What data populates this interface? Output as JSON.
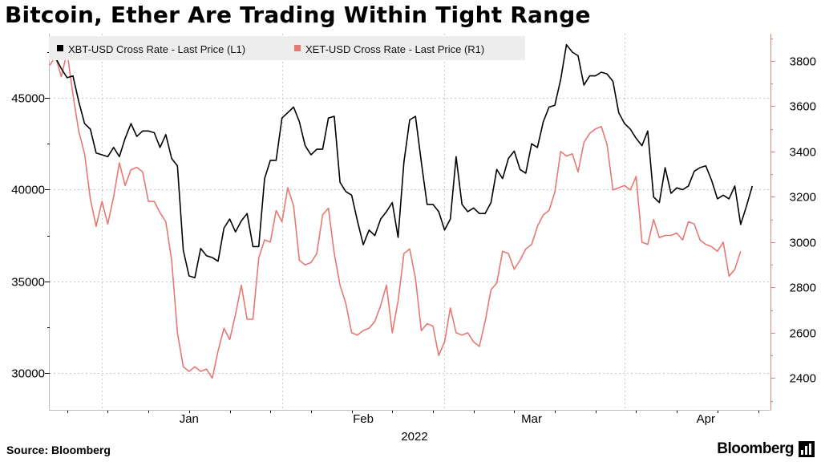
{
  "header": {
    "title": "Bitcoin, Ether Are Trading Within Tight Range"
  },
  "footer": {
    "source": "Source:  Bloomberg",
    "brand": "Bloomberg"
  },
  "colors": {
    "btc": "#000000",
    "eth": "#e87872",
    "right_axis": "#e8837c",
    "grid": "#c8c8c8"
  },
  "chart_data": {
    "type": "line",
    "title": "Bitcoin, Ether Are Trading Within Tight Range",
    "xlabel": "2022",
    "x_tick_labels": [
      "Jan",
      "Feb",
      "Mar",
      "Apr"
    ],
    "legend_placement": "top-left",
    "grid": true,
    "y_left": {
      "ylim": [
        28000,
        48500
      ],
      "ticks": [
        30000,
        35000,
        40000,
        45000
      ]
    },
    "y_right": {
      "ylim": [
        2260,
        3920
      ],
      "ticks": [
        2400,
        2600,
        2800,
        3000,
        3200,
        3400,
        3600,
        3800
      ]
    },
    "x_range": [
      "2021-12-23",
      "2022-04-26"
    ],
    "series": [
      {
        "name": "XBT-USD Cross Rate - Last Price (L1)",
        "axis": "left",
        "points": [
          [
            "2021-12-23",
            47400
          ],
          [
            "2021-12-24",
            47200
          ],
          [
            "2021-12-25",
            46600
          ],
          [
            "2021-12-26",
            46100
          ],
          [
            "2021-12-27",
            46200
          ],
          [
            "2021-12-28",
            44800
          ],
          [
            "2021-12-29",
            43600
          ],
          [
            "2021-12-30",
            43300
          ],
          [
            "2021-12-31",
            42000
          ],
          [
            "2022-01-01",
            41900
          ],
          [
            "2022-01-02",
            41800
          ],
          [
            "2022-01-03",
            42300
          ],
          [
            "2022-01-04",
            41800
          ],
          [
            "2022-01-05",
            42800
          ],
          [
            "2022-01-06",
            43600
          ],
          [
            "2022-01-07",
            42900
          ],
          [
            "2022-01-08",
            43200
          ],
          [
            "2022-01-09",
            43200
          ],
          [
            "2022-01-10",
            43100
          ],
          [
            "2022-01-11",
            42300
          ],
          [
            "2022-01-12",
            43000
          ],
          [
            "2022-01-13",
            41700
          ],
          [
            "2022-01-14",
            41300
          ],
          [
            "2022-01-15",
            36700
          ],
          [
            "2022-01-16",
            35300
          ],
          [
            "2022-01-17",
            35200
          ],
          [
            "2022-01-18",
            36800
          ],
          [
            "2022-01-19",
            36400
          ],
          [
            "2022-01-20",
            36300
          ],
          [
            "2022-01-21",
            36100
          ],
          [
            "2022-01-22",
            37900
          ],
          [
            "2022-01-23",
            38400
          ],
          [
            "2022-01-24",
            37700
          ],
          [
            "2022-01-25",
            38300
          ],
          [
            "2022-01-26",
            38700
          ],
          [
            "2022-01-27",
            36900
          ],
          [
            "2022-01-28",
            36900
          ],
          [
            "2022-01-29",
            40600
          ],
          [
            "2022-01-30",
            41600
          ],
          [
            "2022-01-31",
            41600
          ],
          [
            "2022-02-01",
            43900
          ],
          [
            "2022-02-02",
            44200
          ],
          [
            "2022-02-03",
            44500
          ],
          [
            "2022-02-04",
            43700
          ],
          [
            "2022-02-05",
            42400
          ],
          [
            "2022-02-06",
            41900
          ],
          [
            "2022-02-07",
            42200
          ],
          [
            "2022-02-08",
            42200
          ],
          [
            "2022-02-09",
            43900
          ],
          [
            "2022-02-10",
            44000
          ],
          [
            "2022-02-11",
            40400
          ],
          [
            "2022-02-12",
            39900
          ],
          [
            "2022-02-13",
            39700
          ],
          [
            "2022-02-14",
            38300
          ],
          [
            "2022-02-15",
            37000
          ],
          [
            "2022-02-16",
            37800
          ],
          [
            "2022-02-17",
            37500
          ],
          [
            "2022-02-18",
            38400
          ],
          [
            "2022-02-19",
            38800
          ],
          [
            "2022-02-20",
            39300
          ],
          [
            "2022-02-21",
            37400
          ],
          [
            "2022-02-22",
            41500
          ],
          [
            "2022-02-23",
            43800
          ],
          [
            "2022-02-24",
            44000
          ],
          [
            "2022-02-25",
            41500
          ],
          [
            "2022-02-26",
            39200
          ],
          [
            "2022-02-27",
            39200
          ],
          [
            "2022-02-28",
            38800
          ],
          [
            "2022-03-01",
            37800
          ],
          [
            "2022-03-02",
            38400
          ],
          [
            "2022-03-03",
            41800
          ],
          [
            "2022-03-04",
            39200
          ],
          [
            "2022-03-05",
            38800
          ],
          [
            "2022-03-06",
            39000
          ],
          [
            "2022-03-07",
            38700
          ],
          [
            "2022-03-08",
            38700
          ],
          [
            "2022-03-09",
            39300
          ],
          [
            "2022-03-10",
            41100
          ],
          [
            "2022-03-11",
            40600
          ],
          [
            "2022-03-12",
            41700
          ],
          [
            "2022-03-13",
            42100
          ],
          [
            "2022-03-14",
            41100
          ],
          [
            "2022-03-15",
            40900
          ],
          [
            "2022-03-16",
            42500
          ],
          [
            "2022-03-17",
            42300
          ],
          [
            "2022-03-18",
            43700
          ],
          [
            "2022-03-19",
            44500
          ],
          [
            "2022-03-20",
            44600
          ],
          [
            "2022-03-21",
            46000
          ],
          [
            "2022-03-22",
            47900
          ],
          [
            "2022-03-23",
            47500
          ],
          [
            "2022-03-24",
            47300
          ],
          [
            "2022-03-25",
            45700
          ],
          [
            "2022-03-26",
            46200
          ],
          [
            "2022-03-27",
            46200
          ],
          [
            "2022-03-28",
            46400
          ],
          [
            "2022-03-29",
            46300
          ],
          [
            "2022-03-30",
            45900
          ],
          [
            "2022-03-31",
            44200
          ],
          [
            "2022-04-01",
            43600
          ],
          [
            "2022-04-02",
            43300
          ],
          [
            "2022-04-03",
            42800
          ],
          [
            "2022-04-04",
            42400
          ],
          [
            "2022-04-05",
            43200
          ],
          [
            "2022-04-06",
            39600
          ],
          [
            "2022-04-07",
            39300
          ],
          [
            "2022-04-08",
            41200
          ],
          [
            "2022-04-09",
            39800
          ],
          [
            "2022-04-10",
            40100
          ],
          [
            "2022-04-11",
            40000
          ],
          [
            "2022-04-12",
            40200
          ],
          [
            "2022-04-13",
            41000
          ],
          [
            "2022-04-14",
            41200
          ],
          [
            "2022-04-15",
            41300
          ],
          [
            "2022-04-16",
            40500
          ],
          [
            "2022-04-17",
            39500
          ],
          [
            "2022-04-18",
            39700
          ],
          [
            "2022-04-19",
            39500
          ],
          [
            "2022-04-20",
            40200
          ],
          [
            "2022-04-21",
            38100
          ],
          [
            "2022-04-22",
            39100
          ],
          [
            "2022-04-23",
            40200
          ]
        ]
      },
      {
        "name": "XET-USD Cross Rate - Last Price (R1)",
        "axis": "right",
        "points": [
          [
            "2021-12-23",
            3780
          ],
          [
            "2021-12-24",
            3820
          ],
          [
            "2021-12-25",
            3730
          ],
          [
            "2021-12-26",
            3840
          ],
          [
            "2021-12-27",
            3650
          ],
          [
            "2021-12-28",
            3490
          ],
          [
            "2021-12-29",
            3390
          ],
          [
            "2021-12-30",
            3190
          ],
          [
            "2021-12-31",
            3070
          ],
          [
            "2022-01-01",
            3180
          ],
          [
            "2022-01-02",
            3080
          ],
          [
            "2022-01-03",
            3200
          ],
          [
            "2022-01-04",
            3350
          ],
          [
            "2022-01-05",
            3250
          ],
          [
            "2022-01-06",
            3320
          ],
          [
            "2022-01-07",
            3330
          ],
          [
            "2022-01-08",
            3310
          ],
          [
            "2022-01-09",
            3180
          ],
          [
            "2022-01-10",
            3180
          ],
          [
            "2022-01-11",
            3130
          ],
          [
            "2022-01-12",
            3090
          ],
          [
            "2022-01-13",
            2920
          ],
          [
            "2022-01-14",
            2600
          ],
          [
            "2022-01-15",
            2450
          ],
          [
            "2022-01-16",
            2430
          ],
          [
            "2022-01-17",
            2450
          ],
          [
            "2022-01-18",
            2430
          ],
          [
            "2022-01-19",
            2440
          ],
          [
            "2022-01-20",
            2400
          ],
          [
            "2022-01-21",
            2520
          ],
          [
            "2022-01-22",
            2620
          ],
          [
            "2022-01-23",
            2570
          ],
          [
            "2022-01-24",
            2680
          ],
          [
            "2022-01-25",
            2810
          ],
          [
            "2022-01-26",
            2660
          ],
          [
            "2022-01-27",
            2660
          ],
          [
            "2022-01-28",
            2930
          ],
          [
            "2022-01-29",
            3010
          ],
          [
            "2022-01-30",
            3000
          ],
          [
            "2022-01-31",
            3140
          ],
          [
            "2022-02-01",
            3090
          ],
          [
            "2022-02-02",
            3240
          ],
          [
            "2022-02-03",
            3160
          ],
          [
            "2022-02-04",
            2920
          ],
          [
            "2022-02-05",
            2900
          ],
          [
            "2022-02-06",
            2910
          ],
          [
            "2022-02-07",
            2950
          ],
          [
            "2022-02-08",
            3120
          ],
          [
            "2022-02-09",
            3150
          ],
          [
            "2022-02-10",
            2950
          ],
          [
            "2022-02-11",
            2810
          ],
          [
            "2022-02-12",
            2730
          ],
          [
            "2022-02-13",
            2600
          ],
          [
            "2022-02-14",
            2590
          ],
          [
            "2022-02-15",
            2610
          ],
          [
            "2022-02-16",
            2620
          ],
          [
            "2022-02-17",
            2650
          ],
          [
            "2022-02-18",
            2720
          ],
          [
            "2022-02-19",
            2810
          ],
          [
            "2022-02-20",
            2600
          ],
          [
            "2022-02-21",
            2740
          ],
          [
            "2022-02-22",
            2950
          ],
          [
            "2022-02-23",
            2970
          ],
          [
            "2022-02-24",
            2840
          ],
          [
            "2022-02-25",
            2610
          ],
          [
            "2022-02-26",
            2640
          ],
          [
            "2022-02-27",
            2630
          ],
          [
            "2022-02-28",
            2500
          ],
          [
            "2022-03-01",
            2560
          ],
          [
            "2022-03-02",
            2710
          ],
          [
            "2022-03-03",
            2600
          ],
          [
            "2022-03-04",
            2590
          ],
          [
            "2022-03-05",
            2600
          ],
          [
            "2022-03-06",
            2560
          ],
          [
            "2022-03-07",
            2540
          ],
          [
            "2022-03-08",
            2650
          ],
          [
            "2022-03-09",
            2790
          ],
          [
            "2022-03-10",
            2820
          ],
          [
            "2022-03-11",
            2960
          ],
          [
            "2022-03-12",
            2950
          ],
          [
            "2022-03-13",
            2880
          ],
          [
            "2022-03-14",
            2920
          ],
          [
            "2022-03-15",
            2970
          ],
          [
            "2022-03-16",
            2990
          ],
          [
            "2022-03-17",
            3070
          ],
          [
            "2022-03-18",
            3120
          ],
          [
            "2022-03-19",
            3140
          ],
          [
            "2022-03-20",
            3220
          ],
          [
            "2022-03-21",
            3400
          ],
          [
            "2022-03-22",
            3380
          ],
          [
            "2022-03-23",
            3390
          ],
          [
            "2022-03-24",
            3310
          ],
          [
            "2022-03-25",
            3440
          ],
          [
            "2022-03-26",
            3480
          ],
          [
            "2022-03-27",
            3500
          ],
          [
            "2022-03-28",
            3510
          ],
          [
            "2022-03-29",
            3430
          ],
          [
            "2022-03-30",
            3230
          ],
          [
            "2022-03-31",
            3240
          ],
          [
            "2022-04-01",
            3250
          ],
          [
            "2022-04-02",
            3230
          ],
          [
            "2022-04-03",
            3290
          ],
          [
            "2022-04-04",
            3000
          ],
          [
            "2022-04-05",
            2990
          ],
          [
            "2022-04-06",
            3100
          ],
          [
            "2022-04-07",
            3020
          ],
          [
            "2022-04-08",
            3030
          ],
          [
            "2022-04-09",
            3030
          ],
          [
            "2022-04-10",
            3040
          ],
          [
            "2022-04-11",
            3010
          ],
          [
            "2022-04-12",
            3090
          ],
          [
            "2022-04-13",
            3080
          ],
          [
            "2022-04-14",
            3010
          ],
          [
            "2022-04-15",
            2990
          ],
          [
            "2022-04-16",
            2980
          ],
          [
            "2022-04-17",
            2960
          ],
          [
            "2022-04-18",
            3000
          ],
          [
            "2022-04-19",
            2850
          ],
          [
            "2022-04-20",
            2880
          ],
          [
            "2022-04-21",
            2960
          ]
        ]
      }
    ]
  }
}
